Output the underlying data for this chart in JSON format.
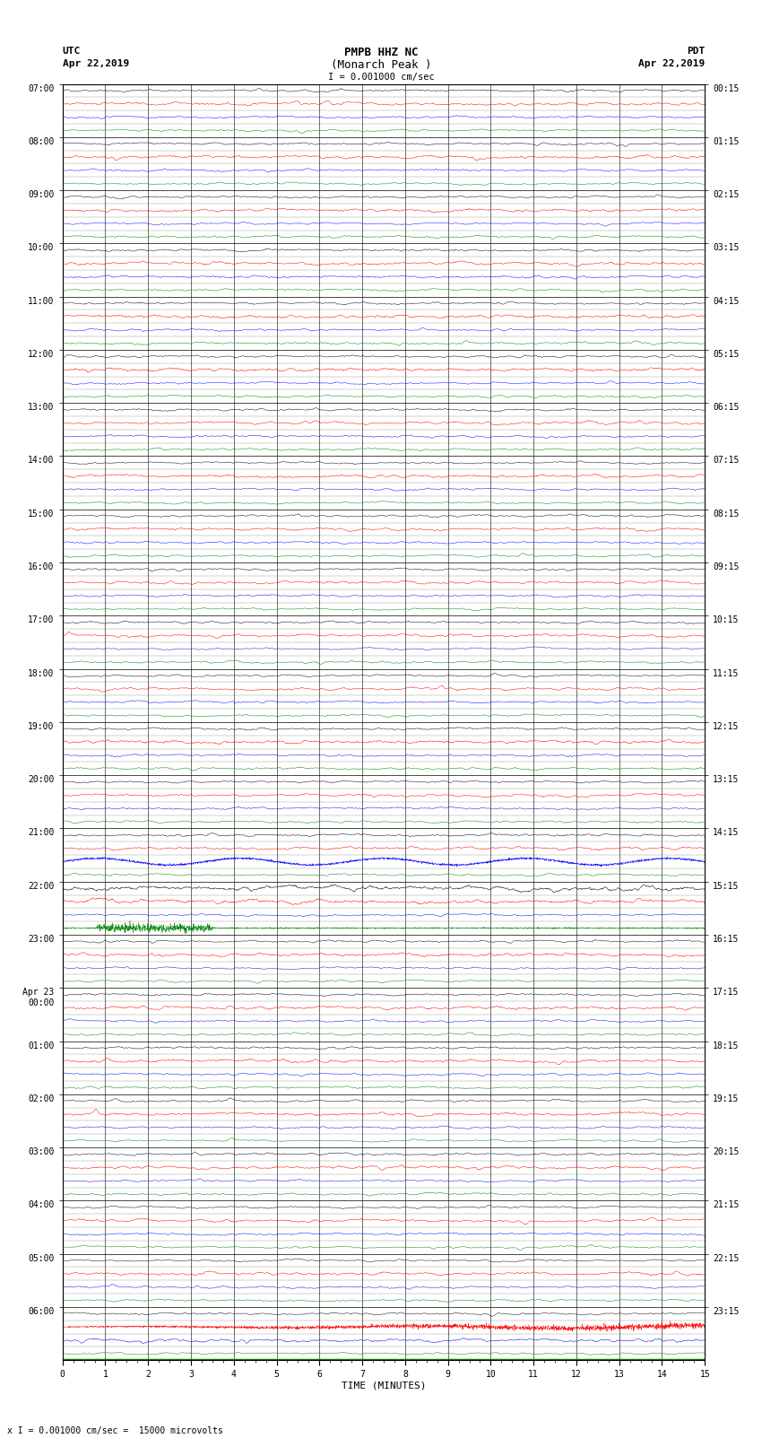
{
  "title_line1": "PMPB HHZ NC",
  "title_line2": "(Monarch Peak )",
  "scale_text": "I = 0.001000 cm/sec",
  "left_header1": "UTC",
  "left_header2": "Apr 22,2019",
  "right_header1": "PDT",
  "right_header2": "Apr 22,2019",
  "bottom_label": "TIME (MINUTES)",
  "bottom_note": "x I = 0.001000 cm/sec =  15000 microvolts",
  "utc_hour_labels": [
    "07:00",
    "08:00",
    "09:00",
    "10:00",
    "11:00",
    "12:00",
    "13:00",
    "14:00",
    "15:00",
    "16:00",
    "17:00",
    "18:00",
    "19:00",
    "20:00",
    "21:00",
    "22:00",
    "23:00",
    "Apr 23\n00:00",
    "01:00",
    "02:00",
    "03:00",
    "04:00",
    "05:00",
    "06:00"
  ],
  "pdt_hour_labels": [
    "00:15",
    "01:15",
    "02:15",
    "03:15",
    "04:15",
    "05:15",
    "06:15",
    "07:15",
    "08:15",
    "09:15",
    "10:15",
    "11:15",
    "12:15",
    "13:15",
    "14:15",
    "15:15",
    "16:15",
    "17:15",
    "18:15",
    "19:15",
    "20:15",
    "21:15",
    "22:15",
    "23:15"
  ],
  "num_hours": 24,
  "traces_per_hour": 4,
  "trace_colors": [
    "black",
    "red",
    "blue",
    "green"
  ],
  "minutes": 15,
  "background_color": "white",
  "noise_base": 0.04,
  "seed": 12345,
  "special_blue_hour": 14,
  "special_green_hour": 15,
  "prominent_red_last": true
}
